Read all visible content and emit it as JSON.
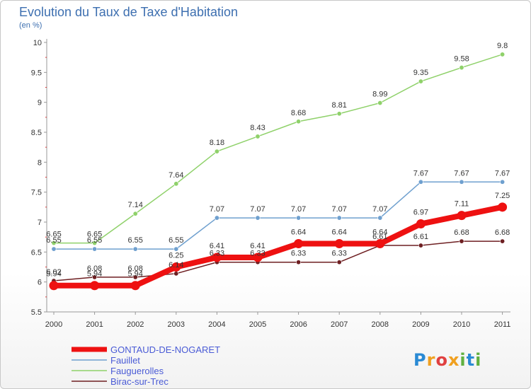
{
  "header": {
    "title": "Evolution du Taux de Taxe d'Habitation",
    "unit": "(en %)"
  },
  "logo": {
    "text": "Proxiti",
    "colors": [
      "#2a8ad4",
      "#f0a020",
      "#e04040",
      "#f0a020",
      "#60b040",
      "#2a8ad4",
      "#60b040"
    ]
  },
  "chart_data": {
    "type": "line",
    "title": "Evolution du Taux de Taxe d'Habitation",
    "ylabel": "(en %)",
    "xlabel": "",
    "x": [
      "2000",
      "2001",
      "2002",
      "2003",
      "2004",
      "2005",
      "2006",
      "2007",
      "2008",
      "2009",
      "2010",
      "2011"
    ],
    "ylim": [
      5.5,
      10
    ],
    "yticks": [
      "5.5",
      "6",
      "6.5",
      "7",
      "7.5",
      "8",
      "8.5",
      "9",
      "9.5",
      "10"
    ],
    "grid": false,
    "legend_position": "bottom-left",
    "series": [
      {
        "name": "Fauguerolles",
        "color": "#8fd16a",
        "width": 1.5,
        "values": [
          6.65,
          6.65,
          7.14,
          7.64,
          8.18,
          8.43,
          8.68,
          8.81,
          8.99,
          9.35,
          9.58,
          9.8
        ],
        "labels": [
          "6.65",
          "6.65",
          "7.14",
          "7.64",
          "8.18",
          "8.43",
          "8.68",
          "8.81",
          "8.99",
          "9.35",
          "9.58",
          "9.8"
        ]
      },
      {
        "name": "Fauillet",
        "color": "#6fa0cf",
        "width": 1.5,
        "values": [
          6.55,
          6.55,
          6.55,
          6.55,
          7.07,
          7.07,
          7.07,
          7.07,
          7.07,
          7.67,
          7.67,
          7.67
        ],
        "labels": [
          "6.55",
          "6.55",
          "6.55",
          "6.55",
          "7.07",
          "7.07",
          "7.07",
          "7.07",
          "7.07",
          "7.67",
          "7.67",
          "7.67"
        ]
      },
      {
        "name": "Birac-sur-Trec",
        "color": "#6e1f22",
        "width": 1.5,
        "values": [
          6.02,
          6.08,
          6.08,
          6.14,
          6.33,
          6.33,
          6.33,
          6.33,
          6.61,
          6.61,
          6.68,
          6.68
        ],
        "labels": [
          "6.02",
          "6.08",
          "6.08",
          "6.14",
          "6.33",
          "6.33",
          "6.33",
          "6.33",
          "6.61",
          "6.61",
          "6.68",
          "6.68"
        ]
      },
      {
        "name": "GONTAUD-DE-NOGARET",
        "color": "#ee1111",
        "width": 8,
        "values": [
          5.94,
          5.94,
          5.94,
          6.25,
          6.41,
          6.41,
          6.64,
          6.64,
          6.64,
          6.97,
          7.11,
          7.25
        ],
        "labels": [
          "5.94",
          "5.94",
          "5.94",
          "6.25",
          "6.41",
          "6.41",
          "6.64",
          "6.64",
          "6.64",
          "6.97",
          "7.11",
          "7.25"
        ]
      }
    ],
    "legend": [
      "GONTAUD-DE-NOGARET",
      "Fauillet",
      "Fauguerolles",
      "Birac-sur-Trec"
    ]
  }
}
